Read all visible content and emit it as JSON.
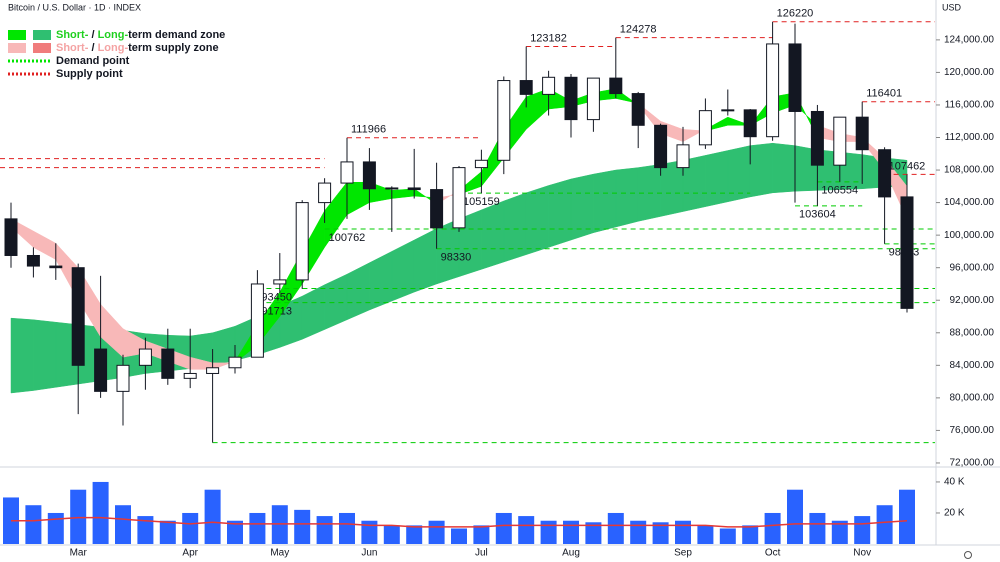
{
  "chart_data": {
    "type": "candlestick",
    "title": "Bitcoin / U.S. Dollar · 1D · INDEX",
    "y_unit": "USD",
    "legend": [
      {
        "parts": [
          "Short-",
          " / ",
          "Long-",
          "term demand zone"
        ],
        "part_colors": [
          "#1fd01f",
          "#131722",
          "#1fd01f",
          "#131722"
        ],
        "swatches": [
          "#00e600",
          "#2fbf71"
        ],
        "style": "box"
      },
      {
        "parts": [
          "Short-",
          " / ",
          "Long-",
          "term supply zone"
        ],
        "part_colors": [
          "#f4a3a3",
          "#131722",
          "#f4a3a3",
          "#131722"
        ],
        "swatches": [
          "#f8b8b8",
          "#f07c7c"
        ],
        "style": "box"
      },
      {
        "parts": [
          "Demand point"
        ],
        "part_colors": [
          "#131722"
        ],
        "swatches": [
          "#00e600"
        ],
        "style": "dotted"
      },
      {
        "parts": [
          "Supply point"
        ],
        "part_colors": [
          "#131722"
        ],
        "swatches": [
          "#e02020"
        ],
        "style": "dotted"
      }
    ],
    "categories": [
      null,
      null,
      null,
      "Mar",
      null,
      null,
      null,
      null,
      "Apr",
      null,
      null,
      null,
      "May",
      null,
      null,
      null,
      "Jun",
      null,
      null,
      null,
      null,
      "Jul",
      null,
      null,
      null,
      "Aug",
      null,
      null,
      null,
      null,
      "Sep",
      null,
      null,
      null,
      "Oct",
      null,
      null,
      null,
      "Nov",
      null,
      null
    ],
    "open": [
      102000,
      97500,
      96200,
      96000,
      86000,
      80800,
      84000,
      86000,
      82400,
      83000,
      83700,
      85000,
      94000,
      94500,
      104000,
      106400,
      109000,
      105700,
      105800,
      105600,
      100900,
      108300,
      109200,
      119000,
      117300,
      119400,
      114200,
      119300,
      117400,
      113500,
      108300,
      111100,
      115300,
      115400,
      112100,
      123500,
      115200,
      108600,
      114500,
      110500,
      104700
    ],
    "high": [
      104000,
      98500,
      99000,
      96500,
      95000,
      85300,
      87400,
      88500,
      88500,
      86000,
      86500,
      95700,
      97800,
      104300,
      107000,
      111966,
      110700,
      106000,
      110600,
      108900,
      108500,
      110500,
      119500,
      123182,
      120200,
      119800,
      119300,
      124278,
      117600,
      113700,
      113300,
      116800,
      117900,
      115500,
      126220,
      126000,
      116000,
      114000,
      116401,
      110800,
      107462
    ],
    "low": [
      96000,
      94800,
      94500,
      78000,
      80000,
      76600,
      81000,
      81600,
      81200,
      74500,
      83000,
      85000,
      92900,
      93400,
      101500,
      102000,
      103100,
      100400,
      104500,
      98330,
      100400,
      105159,
      107500,
      115700,
      114700,
      112000,
      112700,
      116800,
      110700,
      107300,
      107300,
      110600,
      114700,
      108700,
      111600,
      104000,
      103604,
      106554,
      106300,
      98933,
      90500
    ],
    "close": [
      97500,
      96200,
      96000,
      84000,
      80800,
      84000,
      86000,
      82400,
      83000,
      83700,
      85000,
      94000,
      94500,
      104000,
      106400,
      109000,
      105700,
      105800,
      105600,
      100900,
      108300,
      109200,
      119000,
      117300,
      119400,
      114200,
      119300,
      117400,
      113500,
      108300,
      111100,
      115300,
      115400,
      112100,
      123500,
      115200,
      108600,
      114500,
      110500,
      104700,
      91000
    ],
    "ylim": [
      71750,
      128900
    ],
    "yticks": [
      {
        "value": 72000,
        "label": "72,000.00"
      },
      {
        "value": 76000,
        "label": "76,000.00"
      },
      {
        "value": 80000,
        "label": "80,000.00"
      },
      {
        "value": 84000,
        "label": "84,000.00"
      },
      {
        "value": 88000,
        "label": "88,000.00"
      },
      {
        "value": 92000,
        "label": "92,000.00"
      },
      {
        "value": 96000,
        "label": "96,000.00"
      },
      {
        "value": 100000,
        "label": "100,000.00"
      },
      {
        "value": 104000,
        "label": "104,000.00"
      },
      {
        "value": 108000,
        "label": "108,000.00"
      },
      {
        "value": 112000,
        "label": "112,000.00"
      },
      {
        "value": 116000,
        "label": "116,000.00"
      },
      {
        "value": 120000,
        "label": "120,000.00"
      },
      {
        "value": 124000,
        "label": "124,000.00"
      }
    ],
    "long_upper": [
      89800,
      89600,
      89300,
      89000,
      88700,
      88300,
      87900,
      87700,
      87600,
      88000,
      88800,
      90000,
      91300,
      92500,
      93900,
      95200,
      96600,
      98000,
      99400,
      100800,
      102000,
      103100,
      104200,
      105200,
      106100,
      106900,
      107500,
      108000,
      108300,
      108700,
      109200,
      109800,
      110400,
      111000,
      111300,
      111000,
      110500,
      110200,
      109900,
      109500,
      109200
    ],
    "long_lower": [
      80600,
      80900,
      81300,
      81700,
      82100,
      82500,
      83000,
      83300,
      83600,
      84000,
      84600,
      85300,
      86200,
      87200,
      88400,
      89600,
      90800,
      91900,
      93000,
      94000,
      94900,
      95800,
      96700,
      97600,
      98500,
      99400,
      100300,
      101000,
      101700,
      102300,
      102900,
      103500,
      104100,
      104700,
      105200,
      105400,
      105500,
      105600,
      105700,
      105900,
      106100
    ],
    "long_colors": [
      "#2fbf71",
      "#f07c7c"
    ],
    "short_fast": [
      101000,
      98500,
      97000,
      92000,
      87500,
      85000,
      85500,
      84500,
      83500,
      83500,
      84500,
      89000,
      93000,
      98000,
      103000,
      106500,
      106500,
      105500,
      105700,
      103800,
      105500,
      107800,
      113000,
      117000,
      118000,
      116500,
      117500,
      118000,
      116000,
      112500,
      111500,
      113000,
      114500,
      113500,
      117000,
      117500,
      112000,
      111500,
      111500,
      108000,
      102000
    ],
    "short_slow": [
      102000,
      100500,
      99000,
      96000,
      91500,
      88500,
      87000,
      86000,
      85000,
      84300,
      84300,
      86500,
      90000,
      94000,
      98500,
      102500,
      104000,
      104500,
      104800,
      104600,
      105000,
      106000,
      109500,
      113000,
      115500,
      115800,
      116500,
      116800,
      116200,
      114000,
      113000,
      112800,
      113500,
      113500,
      115000,
      116000,
      113500,
      112500,
      112000,
      109500,
      106000
    ],
    "short_colors": [
      "#00e600",
      "#f8b8b8"
    ],
    "levels": [
      {
        "value": 126220,
        "kind": "supply",
        "start": 34,
        "end": 40
      },
      {
        "value": 124278,
        "kind": "supply",
        "start": 27,
        "end": 34
      },
      {
        "value": 123182,
        "kind": "supply",
        "start": 23,
        "end": 27
      },
      {
        "value": 116401,
        "kind": "supply",
        "start": 38,
        "end": 40
      },
      {
        "value": 111966,
        "kind": "supply",
        "start": 15,
        "end": 21
      },
      {
        "value": 107462,
        "kind": "supply",
        "start": 39,
        "end": 40
      },
      {
        "value": 106554,
        "kind": "demand",
        "start": 36,
        "end": 38
      },
      {
        "value": 105159,
        "kind": "demand",
        "start": 20,
        "end": 33
      },
      {
        "value": 103604,
        "kind": "demand",
        "start": 35,
        "end": 38
      },
      {
        "value": 100762,
        "kind": "demand",
        "start": 14,
        "end": 40
      },
      {
        "value": 98933,
        "kind": "demand",
        "start": 39,
        "end": 40
      },
      {
        "value": 98330,
        "kind": "demand",
        "start": 19,
        "end": 40
      },
      {
        "value": 93450,
        "kind": "demand",
        "start": 11,
        "end": 40
      },
      {
        "value": 91713,
        "kind": "demand",
        "start": 11,
        "end": 40
      }
    ],
    "extra_levels": [
      {
        "value": 109400,
        "kind": "supply",
        "start": 0,
        "end": 14
      },
      {
        "value": 108300,
        "kind": "supply",
        "start": 0,
        "end": 14
      },
      {
        "value": 74500,
        "kind": "demand",
        "start": 9,
        "end": 40
      }
    ],
    "level_colors": {
      "supply": "#e02020",
      "demand": "#00cc00"
    },
    "volume": [
      30000,
      25000,
      20000,
      35000,
      40000,
      25000,
      18000,
      15000,
      20000,
      35000,
      15000,
      20000,
      25000,
      22000,
      18000,
      20000,
      15000,
      12000,
      12000,
      15000,
      10000,
      12000,
      20000,
      18000,
      15000,
      15000,
      14000,
      20000,
      15000,
      14000,
      15000,
      12000,
      10000,
      12000,
      20000,
      35000,
      20000,
      15000,
      18000,
      25000,
      35000
    ],
    "volume_ma": [
      15000,
      15000,
      16000,
      17000,
      17000,
      16000,
      15000,
      14000,
      13000,
      14000,
      13000,
      13000,
      13000,
      13000,
      13000,
      13000,
      12000,
      12000,
      11000,
      11000,
      11000,
      11000,
      12000,
      12000,
      12000,
      12000,
      12000,
      12000,
      12000,
      12000,
      12000,
      12000,
      11000,
      11000,
      12000,
      13000,
      13000,
      13000,
      13000,
      14000,
      15000
    ],
    "volume_color": "#2962ff",
    "volume_ma_color": "#e53935",
    "volume_ylim": [
      0,
      47700
    ],
    "volume_yticks": [
      {
        "value": 20000,
        "label": "20 K"
      },
      {
        "value": 40000,
        "label": "40 K"
      }
    ]
  }
}
